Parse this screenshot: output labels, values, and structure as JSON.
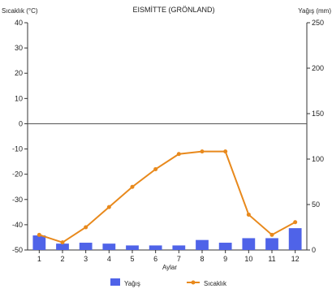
{
  "chart_data": {
    "type": "bar+line",
    "title": "EISMİTTE (GRÖNLAND)",
    "xlabel": "Aylar",
    "y_left_label": "Sıcaklık (°C)",
    "y_right_label": "Yağış (mm)",
    "categories": [
      "1",
      "2",
      "3",
      "4",
      "5",
      "6",
      "7",
      "8",
      "9",
      "10",
      "11",
      "12"
    ],
    "y_left_range": [
      -50,
      40
    ],
    "y_left_ticks": [
      "40",
      "30",
      "20",
      "10",
      "0",
      "-10",
      "-20",
      "-30",
      "-40",
      "-50"
    ],
    "y_right_range": [
      0,
      250
    ],
    "y_right_ticks": [
      "250",
      "200",
      "150",
      "100",
      "50",
      "0"
    ],
    "zero_line": true,
    "grid": false,
    "legend_position": "bottom",
    "series": [
      {
        "name": "Yağış",
        "type": "bar",
        "axis": "right",
        "color": "#4f63e8",
        "values": [
          16,
          7,
          8,
          7,
          5,
          5,
          5,
          11,
          8,
          13,
          13,
          24
        ]
      },
      {
        "name": "Sıcaklık",
        "type": "line",
        "axis": "left",
        "color": "#e8891c",
        "values": [
          -44,
          -47,
          -41,
          -33,
          -25,
          -18,
          -12,
          -11,
          -11,
          -36,
          -44,
          -39
        ]
      }
    ]
  }
}
